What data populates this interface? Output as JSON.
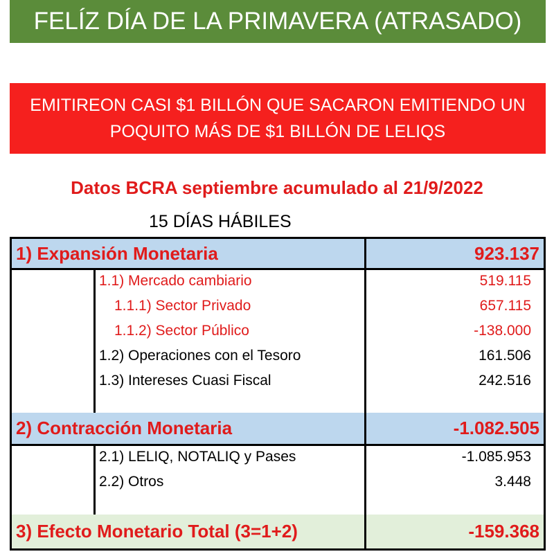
{
  "banner": "FELÍZ DÍA DE LA PRIMAVERA (ATRASADO)",
  "headline": [
    "EMITIREON CASI $1 BILLÓN QUE SACARON EMITIENDO UN",
    "POQUITO MÁS DE $1 BILLÓN DE LELIQS"
  ],
  "subtitle": "Datos BCRA septiembre acumulado al 21/9/2022",
  "days": "15 DÍAS HÁBILES",
  "table": {
    "sections": [
      {
        "label": "1) Expansión Monetaria",
        "value": "923.137",
        "items": [
          {
            "label": "1.1) Mercado cambiario",
            "value": "519.115"
          },
          {
            "label": "1.1.1) Sector Privado",
            "value": "657.115"
          },
          {
            "label": "1.1.2) Sector Público",
            "value": "-138.000"
          },
          {
            "label": "1.2) Operaciones con el Tesoro",
            "value": "161.506"
          },
          {
            "label": "1.3) Intereses Cuasi Fiscal",
            "value": "242.516"
          }
        ]
      },
      {
        "label": "2) Contracción Monetaria",
        "value": "-1.082.505",
        "items": [
          {
            "label": "2.1) LELIQ, NOTALIQ y Pases",
            "value": "-1.085.953"
          },
          {
            "label": "2.2) Otros",
            "value": "3.448"
          }
        ]
      },
      {
        "label": "3) Efecto Monetario Total (3=1+2)",
        "value": "-159.368",
        "items": []
      }
    ]
  }
}
